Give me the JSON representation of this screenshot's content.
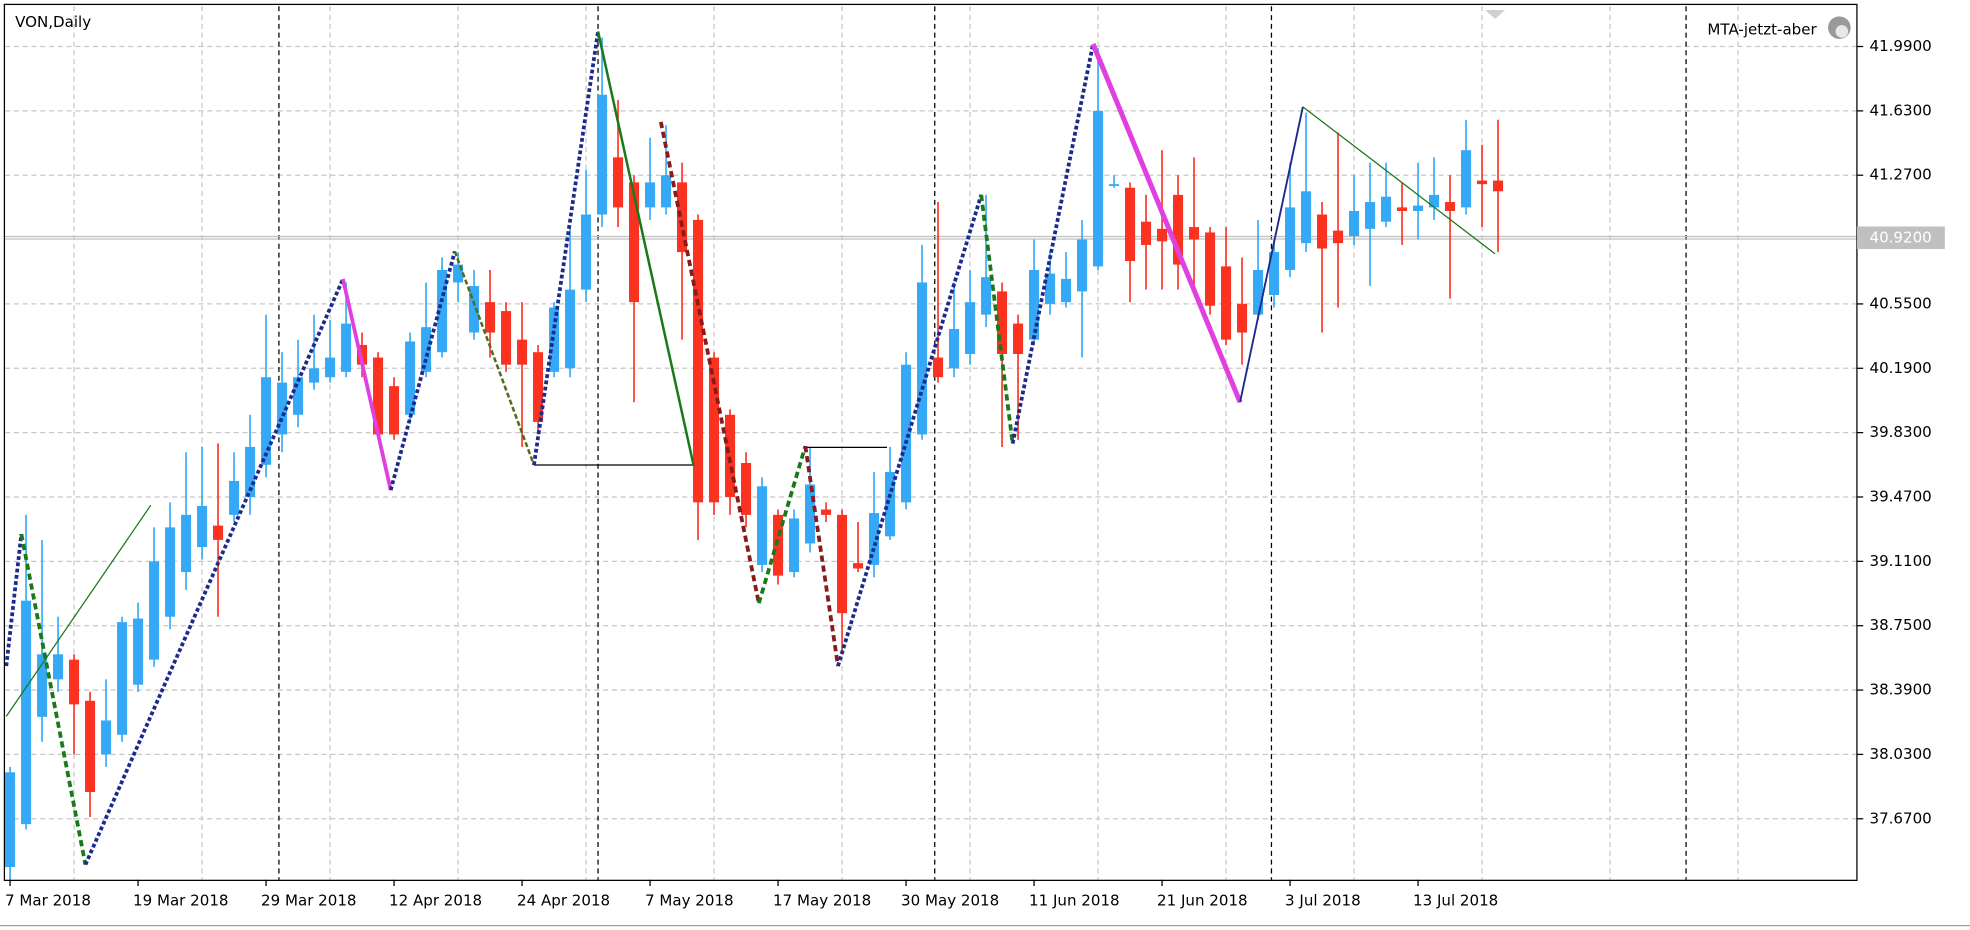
{
  "chart_data": {
    "type": "candlestick",
    "title": "VON,Daily",
    "expert": "MTA-jetzt-aber",
    "up_color": "#35a9f5",
    "down_color": "#f93222",
    "grid": true,
    "categories": [
      "7 Mar 2018",
      null,
      null,
      null,
      null,
      null,
      null,
      null,
      "19 Mar 2018",
      null,
      null,
      null,
      null,
      null,
      null,
      null,
      "29 Mar 2018",
      null,
      null,
      null,
      null,
      null,
      null,
      null,
      "12 Apr 2018",
      null,
      null,
      null,
      null,
      null,
      null,
      null,
      "24 Apr 2018",
      null,
      null,
      null,
      null,
      null,
      null,
      null,
      "7 May 2018",
      null,
      null,
      null,
      null,
      null,
      null,
      null,
      "17 May 2018",
      null,
      null,
      null,
      null,
      null,
      null,
      null,
      "30 May 2018",
      null,
      null,
      null,
      null,
      null,
      null,
      null,
      "11 Jun 2018",
      null,
      null,
      null,
      null,
      null,
      null,
      null,
      "21 Jun 2018",
      null,
      null,
      null,
      null,
      null,
      null,
      null,
      "3 Jul 2018",
      null,
      null,
      null,
      null,
      null,
      null,
      null,
      "13 Jul 2018",
      null,
      null,
      null,
      null,
      null
    ],
    "open": [
      37.4,
      37.64,
      38.24,
      38.45,
      38.56,
      38.33,
      38.03,
      38.14,
      38.42,
      38.56,
      38.8,
      39.05,
      39.19,
      39.31,
      39.37,
      39.47,
      39.65,
      39.82,
      39.93,
      40.11,
      40.14,
      40.17,
      40.32,
      40.25,
      40.09,
      39.93,
      40.17,
      40.28,
      40.67,
      40.39,
      40.56,
      40.51,
      40.35,
      40.28,
      40.17,
      40.19,
      40.63,
      41.05,
      41.37,
      41.23,
      41.09,
      41.09,
      41.23,
      41.02,
      40.25,
      39.93,
      39.66,
      39.09,
      39.37,
      39.05,
      39.21,
      39.4,
      39.37,
      39.1,
      39.09,
      39.25,
      39.44,
      39.82,
      40.25,
      40.19,
      40.27,
      40.49,
      40.62,
      40.44,
      40.35,
      40.55,
      40.56,
      40.62,
      40.76,
      41.21,
      41.2,
      41.01,
      40.97,
      41.16,
      40.98,
      40.95,
      40.76,
      40.55,
      40.49,
      40.6,
      40.74,
      40.89,
      41.05,
      40.96,
      40.93,
      40.97,
      41.01,
      41.09,
      41.07,
      41.09,
      41.12,
      41.09,
      41.24,
      41.24
    ],
    "high": [
      37.96,
      39.37,
      39.23,
      38.8,
      38.59,
      38.38,
      38.45,
      38.8,
      38.88,
      39.3,
      39.44,
      39.72,
      39.75,
      39.77,
      39.72,
      39.93,
      40.49,
      40.28,
      40.35,
      40.49,
      40.46,
      40.67,
      40.39,
      40.28,
      40.14,
      40.39,
      40.67,
      40.81,
      40.84,
      40.74,
      40.74,
      40.56,
      40.56,
      40.32,
      40.56,
      40.98,
      41.3,
      42.04,
      41.69,
      41.27,
      41.48,
      41.55,
      41.34,
      41.05,
      40.28,
      39.96,
      39.72,
      39.58,
      39.4,
      39.4,
      39.75,
      39.44,
      39.4,
      39.33,
      39.61,
      39.75,
      40.28,
      40.88,
      41.12,
      40.67,
      40.74,
      41.16,
      40.67,
      40.49,
      40.91,
      40.84,
      40.84,
      41.02,
      41.98,
      41.27,
      41.23,
      41.16,
      41.41,
      41.27,
      41.37,
      40.98,
      40.98,
      40.81,
      41.02,
      40.91,
      41.34,
      41.62,
      41.12,
      41.51,
      41.27,
      41.34,
      41.34,
      41.23,
      41.34,
      41.37,
      41.27,
      41.58,
      41.44,
      41.58
    ],
    "low": [
      37.33,
      37.61,
      38.1,
      38.38,
      38.03,
      37.68,
      37.96,
      38.1,
      38.38,
      38.52,
      38.73,
      38.95,
      39.12,
      38.8,
      39.33,
      39.37,
      39.58,
      39.72,
      39.86,
      40.07,
      40.11,
      40.14,
      40.14,
      39.79,
      39.79,
      39.89,
      40.14,
      40.25,
      40.56,
      40.35,
      40.25,
      40.17,
      39.75,
      39.82,
      40.14,
      40.14,
      40.56,
      40.98,
      40.98,
      40.0,
      41.02,
      41.05,
      40.35,
      39.23,
      39.37,
      39.37,
      39.3,
      39.05,
      38.98,
      39.02,
      39.16,
      39.33,
      38.59,
      39.05,
      39.02,
      39.23,
      39.4,
      39.79,
      40.11,
      40.14,
      40.21,
      40.42,
      39.75,
      39.79,
      40.32,
      40.49,
      40.53,
      40.25,
      40.74,
      41.2,
      40.56,
      40.63,
      40.63,
      40.63,
      40.63,
      40.49,
      40.32,
      40.21,
      40.46,
      40.53,
      40.7,
      40.84,
      40.39,
      40.53,
      40.88,
      40.65,
      40.98,
      40.88,
      40.91,
      41.02,
      40.58,
      41.05,
      40.98,
      40.84
    ],
    "close": [
      37.93,
      38.89,
      38.59,
      38.59,
      38.31,
      37.82,
      38.22,
      38.77,
      38.79,
      39.11,
      39.3,
      39.37,
      39.42,
      39.23,
      39.56,
      39.75,
      40.14,
      40.11,
      40.14,
      40.19,
      40.25,
      40.44,
      40.21,
      39.82,
      39.82,
      40.34,
      40.42,
      40.74,
      40.77,
      40.65,
      40.39,
      40.21,
      40.21,
      39.89,
      40.53,
      40.63,
      41.05,
      41.72,
      41.09,
      40.56,
      41.23,
      41.27,
      40.84,
      39.44,
      39.44,
      39.47,
      39.37,
      39.53,
      39.03,
      39.35,
      39.54,
      39.37,
      38.82,
      39.07,
      39.38,
      39.61,
      40.21,
      40.67,
      40.14,
      40.41,
      40.56,
      40.7,
      40.27,
      40.27,
      40.74,
      40.72,
      40.69,
      40.91,
      41.63,
      41.22,
      40.79,
      40.88,
      40.9,
      40.77,
      40.91,
      40.54,
      40.35,
      40.39,
      40.74,
      40.84,
      41.09,
      41.18,
      40.86,
      40.89,
      41.07,
      41.12,
      41.15,
      41.07,
      41.1,
      41.16,
      41.07,
      41.41,
      41.22,
      41.18
    ],
    "ylim": [
      37.329,
      42.215
    ],
    "yticks": [
      {
        "value": 41.99,
        "label": "41.9900"
      },
      {
        "value": 41.63,
        "label": "41.6300"
      },
      {
        "value": 41.27,
        "label": "41.2700"
      },
      {
        "value": 40.55,
        "label": "40.5500"
      },
      {
        "value": 40.19,
        "label": "40.1900"
      },
      {
        "value": 39.83,
        "label": "39.8300"
      },
      {
        "value": 39.47,
        "label": "39.4700"
      },
      {
        "value": 39.11,
        "label": "39.1100"
      },
      {
        "value": 38.75,
        "label": "38.7500"
      },
      {
        "value": 38.39,
        "label": "38.3900"
      },
      {
        "value": 38.03,
        "label": "38.0300"
      },
      {
        "value": 37.67,
        "label": "37.6700"
      }
    ],
    "price_line": {
      "value": 40.92,
      "label": "40.9200"
    }
  }
}
